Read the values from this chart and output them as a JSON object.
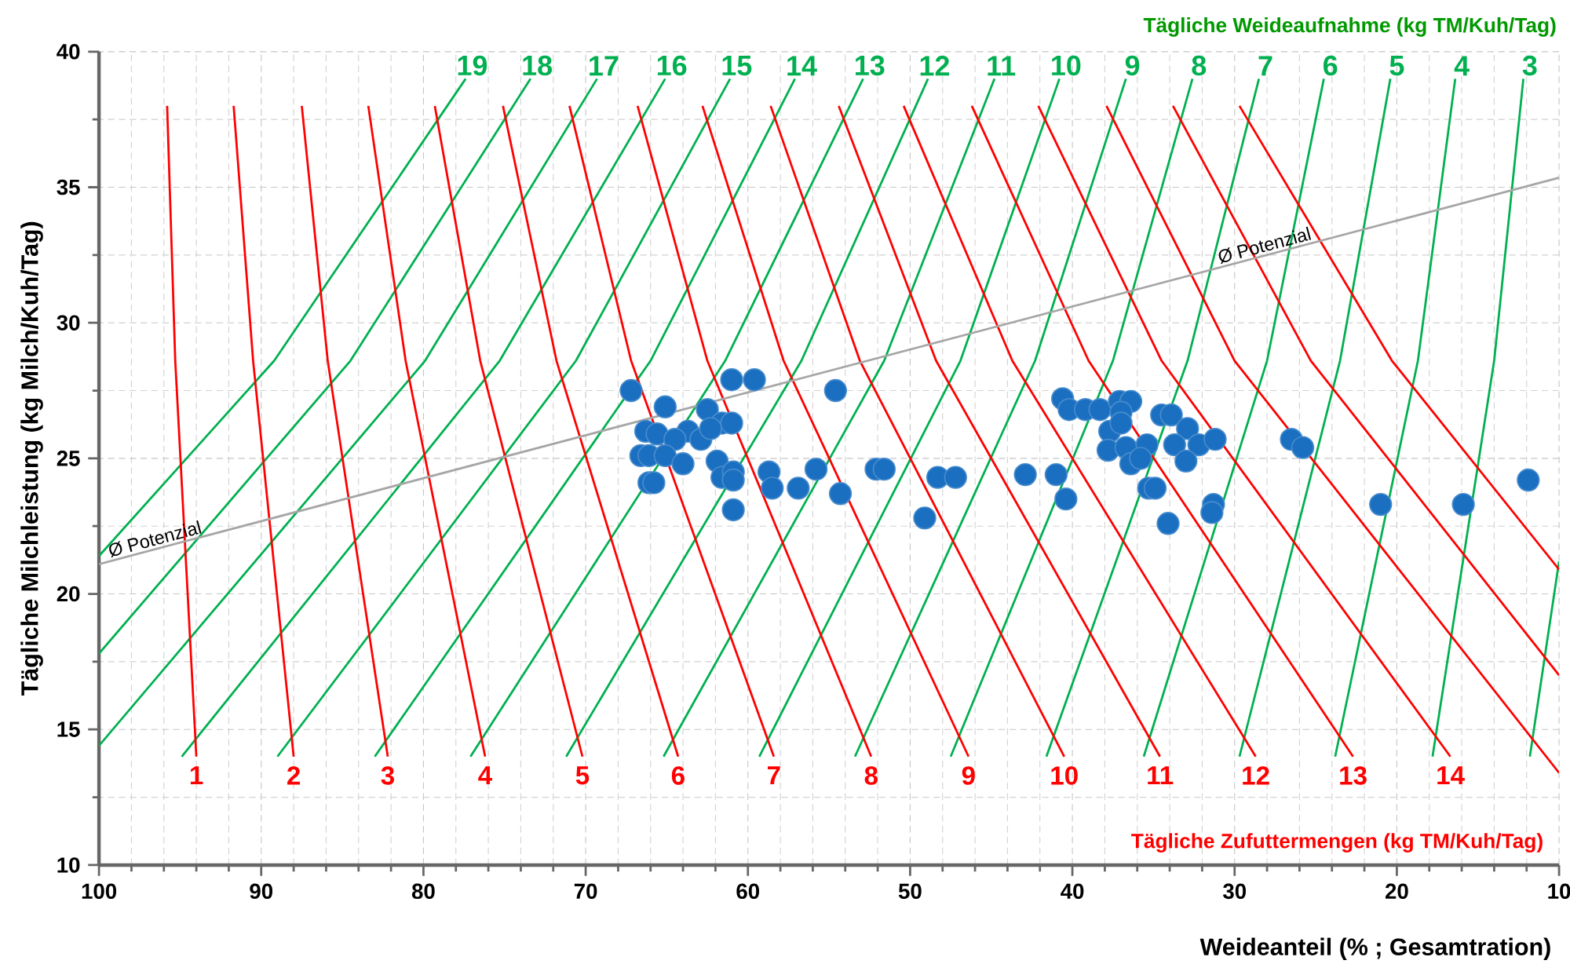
{
  "chart_data": {
    "type": "scatter",
    "xlabel": "Weideanteil (% ; Gesamtration)",
    "ylabel": "Tägliche Milchleistung (kg Milch/Kuh/Tag)",
    "annotations": [
      "Tägliche Weideaufnahme (kg TM/Kuh/Tag)",
      "Tägliche Zufuttermengen (kg TM/Kuh/Tag)"
    ],
    "xlim": [
      100,
      10
    ],
    "ylim": [
      10,
      40
    ],
    "xticks": [
      100,
      90,
      80,
      70,
      60,
      50,
      40,
      30,
      20,
      10
    ],
    "yticks": [
      10,
      15,
      20,
      25,
      30,
      35,
      40
    ],
    "grid": true,
    "series": [
      {
        "type": "line",
        "color": "#00b050",
        "x": [
          11.8,
          10
        ],
        "values": [
          14,
          21.2
        ]
      },
      {
        "type": "line",
        "name": "3",
        "color": "#00b050",
        "x": [
          17.8,
          14.0,
          12.2
        ],
        "values": [
          14,
          28.6,
          39
        ]
      },
      {
        "type": "line",
        "name": "4",
        "color": "#00b050",
        "x": [
          23.8,
          18.7,
          16.4
        ],
        "values": [
          14,
          28.6,
          39
        ]
      },
      {
        "type": "line",
        "name": "5",
        "color": "#00b050",
        "x": [
          29.7,
          23.5,
          20.4
        ],
        "values": [
          14,
          28.6,
          39
        ]
      },
      {
        "type": "line",
        "name": "6",
        "color": "#00b050",
        "x": [
          35.6,
          28.0,
          24.5
        ],
        "values": [
          14,
          28.6,
          39
        ]
      },
      {
        "type": "line",
        "name": "7",
        "color": "#00b050",
        "x": [
          41.6,
          32.9,
          28.5
        ],
        "values": [
          14,
          28.6,
          39
        ]
      },
      {
        "type": "line",
        "name": "8",
        "color": "#00b050",
        "x": [
          47.5,
          37.5,
          32.6
        ],
        "values": [
          14,
          28.6,
          39
        ]
      },
      {
        "type": "line",
        "name": "9",
        "color": "#00b050",
        "x": [
          53.4,
          42.3,
          36.7
        ],
        "values": [
          14,
          28.6,
          39
        ]
      },
      {
        "type": "line",
        "name": "10",
        "color": "#00b050",
        "x": [
          59.3,
          46.9,
          40.8
        ],
        "values": [
          14,
          28.6,
          39
        ]
      },
      {
        "type": "line",
        "name": "11",
        "color": "#00b050",
        "x": [
          65.2,
          51.6,
          44.8
        ],
        "values": [
          14,
          28.6,
          39
        ]
      },
      {
        "type": "line",
        "name": "12",
        "color": "#00b050",
        "x": [
          71.2,
          56.7,
          48.9
        ],
        "values": [
          14,
          28.6,
          39
        ]
      },
      {
        "type": "line",
        "name": "13",
        "color": "#00b050",
        "x": [
          77.1,
          61.4,
          52.9
        ],
        "values": [
          14,
          28.6,
          39
        ]
      },
      {
        "type": "line",
        "name": "14",
        "color": "#00b050",
        "x": [
          83.0,
          66.0,
          57.1
        ],
        "values": [
          14,
          28.6,
          39
        ]
      },
      {
        "type": "line",
        "name": "15",
        "color": "#00b050",
        "x": [
          89.0,
          70.6,
          61.1
        ],
        "values": [
          14,
          28.6,
          39
        ]
      },
      {
        "type": "line",
        "name": "16",
        "color": "#00b050",
        "x": [
          94.9,
          75.3,
          65.1
        ],
        "values": [
          14,
          28.6,
          39
        ]
      },
      {
        "type": "line",
        "name": "17",
        "color": "#00b050",
        "x": [
          100,
          79.9,
          69.3
        ],
        "values": [
          14.4,
          28.6,
          39
        ]
      },
      {
        "type": "line",
        "name": "18",
        "color": "#00b050",
        "x": [
          100,
          84.5,
          73.4
        ],
        "values": [
          17.8,
          28.6,
          39
        ]
      },
      {
        "type": "line",
        "name": "19",
        "color": "#00b050",
        "x": [
          100,
          89.2,
          77.4
        ],
        "values": [
          21.4,
          28.6,
          39
        ]
      },
      {
        "type": "line",
        "name": "1",
        "color": "#ff0000",
        "x": [
          95.8,
          95.3,
          94.0
        ],
        "values": [
          38,
          28.6,
          14
        ]
      },
      {
        "type": "line",
        "name": "2",
        "color": "#ff0000",
        "x": [
          91.7,
          90.5,
          88.0
        ],
        "values": [
          38,
          28.6,
          14
        ]
      },
      {
        "type": "line",
        "name": "3",
        "color": "#ff0000",
        "x": [
          87.5,
          85.9,
          82.2
        ],
        "values": [
          38,
          28.6,
          14
        ]
      },
      {
        "type": "line",
        "name": "4",
        "color": "#ff0000",
        "x": [
          83.4,
          81.1,
          76.2
        ],
        "values": [
          38,
          28.6,
          14
        ]
      },
      {
        "type": "line",
        "name": "5",
        "color": "#ff0000",
        "x": [
          79.3,
          76.5,
          70.2
        ],
        "values": [
          38,
          28.6,
          14
        ]
      },
      {
        "type": "line",
        "name": "6",
        "color": "#ff0000",
        "x": [
          75.1,
          71.8,
          64.3
        ],
        "values": [
          38,
          28.6,
          14
        ]
      },
      {
        "type": "line",
        "name": "7",
        "color": "#ff0000",
        "x": [
          71.0,
          67.2,
          58.4
        ],
        "values": [
          38,
          28.6,
          14
        ]
      },
      {
        "type": "line",
        "name": "8",
        "color": "#ff0000",
        "x": [
          66.8,
          62.5,
          52.4
        ],
        "values": [
          38,
          28.6,
          14
        ]
      },
      {
        "type": "line",
        "name": "9",
        "color": "#ff0000",
        "x": [
          62.8,
          57.8,
          46.4
        ],
        "values": [
          38,
          28.6,
          14
        ]
      },
      {
        "type": "line",
        "name": "10",
        "color": "#ff0000",
        "x": [
          58.6,
          53.1,
          40.5
        ],
        "values": [
          38,
          28.6,
          14
        ]
      },
      {
        "type": "line",
        "name": "11",
        "color": "#ff0000",
        "x": [
          54.4,
          48.4,
          34.6
        ],
        "values": [
          38,
          28.6,
          14
        ]
      },
      {
        "type": "line",
        "name": "12",
        "color": "#ff0000",
        "x": [
          50.4,
          43.7,
          28.7
        ],
        "values": [
          38,
          28.6,
          14
        ]
      },
      {
        "type": "line",
        "name": "13",
        "color": "#ff0000",
        "x": [
          46.2,
          39.0,
          22.7
        ],
        "values": [
          38,
          28.6,
          14
        ]
      },
      {
        "type": "line",
        "name": "14",
        "color": "#ff0000",
        "x": [
          42.1,
          34.5,
          16.7
        ],
        "values": [
          38,
          28.6,
          14
        ]
      },
      {
        "type": "line",
        "color": "#ff0000",
        "x": [
          37.9,
          30.0,
          10
        ],
        "values": [
          38,
          28.6,
          13.4
        ]
      },
      {
        "type": "line",
        "color": "#ff0000",
        "x": [
          33.8,
          25.3,
          10
        ],
        "values": [
          38,
          28.6,
          17.0
        ]
      },
      {
        "type": "line",
        "color": "#ff0000",
        "x": [
          29.7,
          20.3,
          10
        ],
        "values": [
          38,
          28.6,
          20.9
        ]
      },
      {
        "type": "line",
        "name": "Ø Potenzial",
        "color": "#a6a6a6",
        "x": [
          100,
          10
        ],
        "values": [
          21.1,
          35.35
        ]
      },
      {
        "marker": "circle",
        "color": "#1a6fc0",
        "x": [
          67.2,
          61.0,
          59.6,
          54.6,
          65.1,
          62.5,
          61.6,
          61.0,
          63.7,
          66.3,
          65.6,
          64.5,
          62.9,
          62.3,
          66.6,
          66.1,
          65.1,
          64.0,
          61.9,
          61.6,
          60.9,
          60.9,
          58.7,
          58.5,
          56.9,
          55.8,
          54.3,
          52.1,
          51.6,
          48.3,
          47.2,
          42.9,
          41.0,
          60.9,
          49.1,
          66.1,
          65.8,
          40.6,
          40.2,
          39.2,
          38.3,
          37.1,
          36.4,
          37.0,
          34.5,
          33.9,
          37.7,
          37.0,
          32.9,
          32.2,
          31.2,
          33.7,
          37.8,
          36.7,
          35.4,
          36.4,
          35.8,
          33.0,
          26.5,
          25.8,
          40.4,
          35.3,
          34.9,
          34.1,
          31.3,
          31.4,
          21.0,
          15.9,
          11.9
        ],
        "values": [
          27.5,
          27.9,
          27.9,
          27.5,
          26.9,
          26.8,
          26.3,
          26.3,
          26.0,
          26.0,
          25.9,
          25.7,
          25.7,
          26.1,
          25.1,
          25.1,
          25.1,
          24.8,
          24.9,
          24.3,
          24.5,
          24.2,
          24.5,
          23.9,
          23.9,
          24.6,
          23.7,
          24.6,
          24.6,
          24.3,
          24.3,
          24.4,
          24.4,
          23.1,
          22.8,
          24.1,
          24.1,
          27.2,
          26.8,
          26.8,
          26.8,
          27.1,
          27.1,
          26.7,
          26.6,
          26.6,
          26.0,
          26.3,
          26.1,
          25.5,
          25.7,
          25.5,
          25.3,
          25.4,
          25.5,
          24.8,
          25.0,
          24.9,
          25.7,
          25.4,
          23.5,
          23.9,
          23.9,
          22.6,
          23.3,
          23.0,
          23.3,
          23.3,
          24.2
        ]
      }
    ]
  }
}
